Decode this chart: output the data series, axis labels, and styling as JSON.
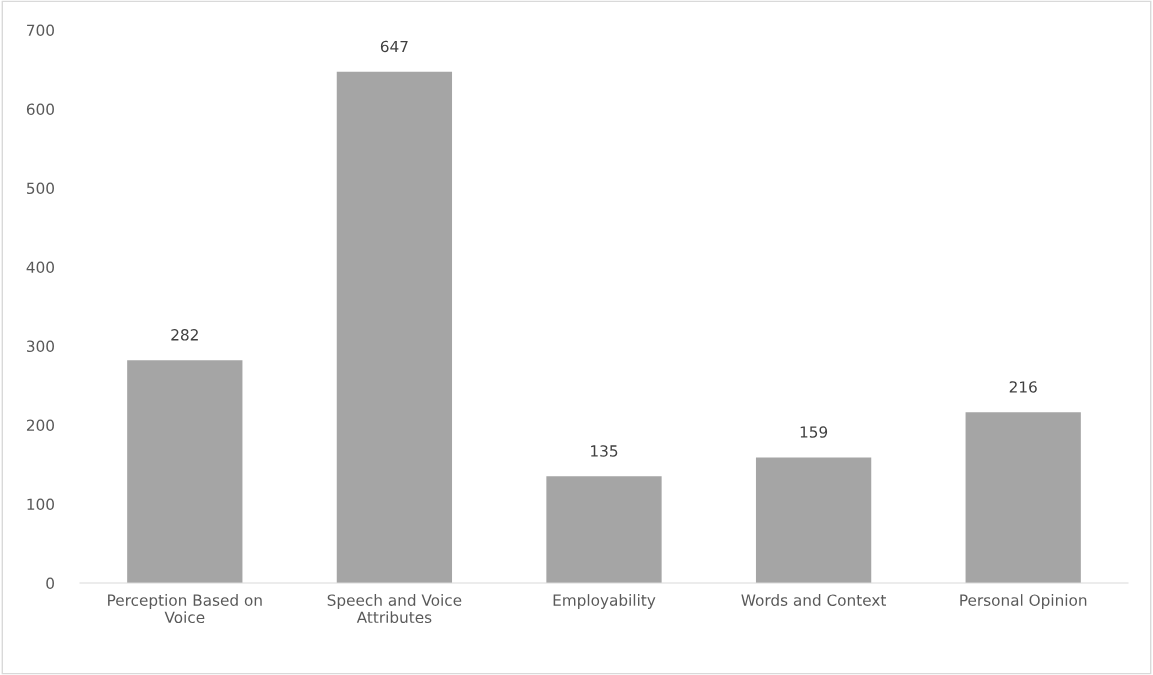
{
  "chart_data": {
    "type": "bar",
    "categories": [
      "Perception Based on\nVoice",
      "Speech and Voice\nAttributes",
      "Employability",
      "Words and Context",
      "Personal Opinion"
    ],
    "values": [
      282,
      647,
      135,
      159,
      216
    ],
    "color": "#a5a5a5",
    "ylim": [
      0,
      700
    ],
    "yticks": [
      0,
      100,
      200,
      300,
      400,
      500,
      600,
      700
    ],
    "data_labels": true,
    "grid": false,
    "legend": false
  }
}
